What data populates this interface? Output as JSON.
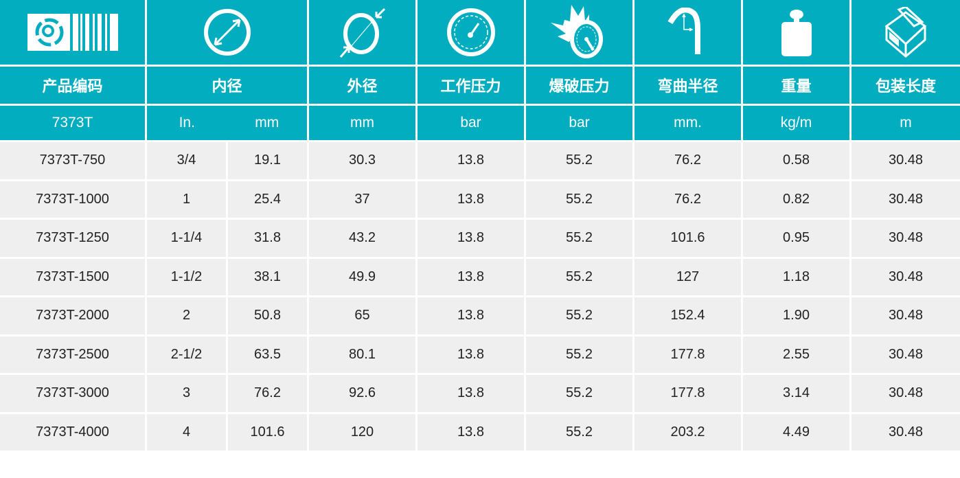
{
  "colors": {
    "header_bg": "#02adbf",
    "row_bg": "#efefef",
    "text": "#222222"
  },
  "icons": [
    "barcode-logo-icon",
    "inner-diameter-icon",
    "outer-diameter-icon",
    "pressure-gauge-icon",
    "burst-gauge-icon",
    "bend-radius-icon",
    "weight-icon",
    "box-icon"
  ],
  "headers": [
    "产品编码",
    "内径",
    "外径",
    "工作压力",
    "爆破压力",
    "弯曲半径",
    "重量",
    "包装长度"
  ],
  "units": {
    "code": "7373T",
    "id_in": "In.",
    "id_mm": "mm",
    "od": "mm",
    "wp": "bar",
    "bp": "bar",
    "br": "mm.",
    "wt": "kg/m",
    "len": "m"
  },
  "rows": [
    [
      "7373T-750",
      "3/4",
      "19.1",
      "30.3",
      "13.8",
      "55.2",
      "76.2",
      "0.58",
      "30.48"
    ],
    [
      "7373T-1000",
      "1",
      "25.4",
      "37",
      "13.8",
      "55.2",
      "76.2",
      "0.82",
      "30.48"
    ],
    [
      "7373T-1250",
      "1-1/4",
      "31.8",
      "43.2",
      "13.8",
      "55.2",
      "101.6",
      "0.95",
      "30.48"
    ],
    [
      "7373T-1500",
      "1-1/2",
      "38.1",
      "49.9",
      "13.8",
      "55.2",
      "127",
      "1.18",
      "30.48"
    ],
    [
      "7373T-2000",
      "2",
      "50.8",
      "65",
      "13.8",
      "55.2",
      "152.4",
      "1.90",
      "30.48"
    ],
    [
      "7373T-2500",
      "2-1/2",
      "63.5",
      "80.1",
      "13.8",
      "55.2",
      "177.8",
      "2.55",
      "30.48"
    ],
    [
      "7373T-3000",
      "3",
      "76.2",
      "92.6",
      "13.8",
      "55.2",
      "177.8",
      "3.14",
      "30.48"
    ],
    [
      "7373T-4000",
      "4",
      "101.6",
      "120",
      "13.8",
      "55.2",
      "203.2",
      "4.49",
      "30.48"
    ]
  ]
}
